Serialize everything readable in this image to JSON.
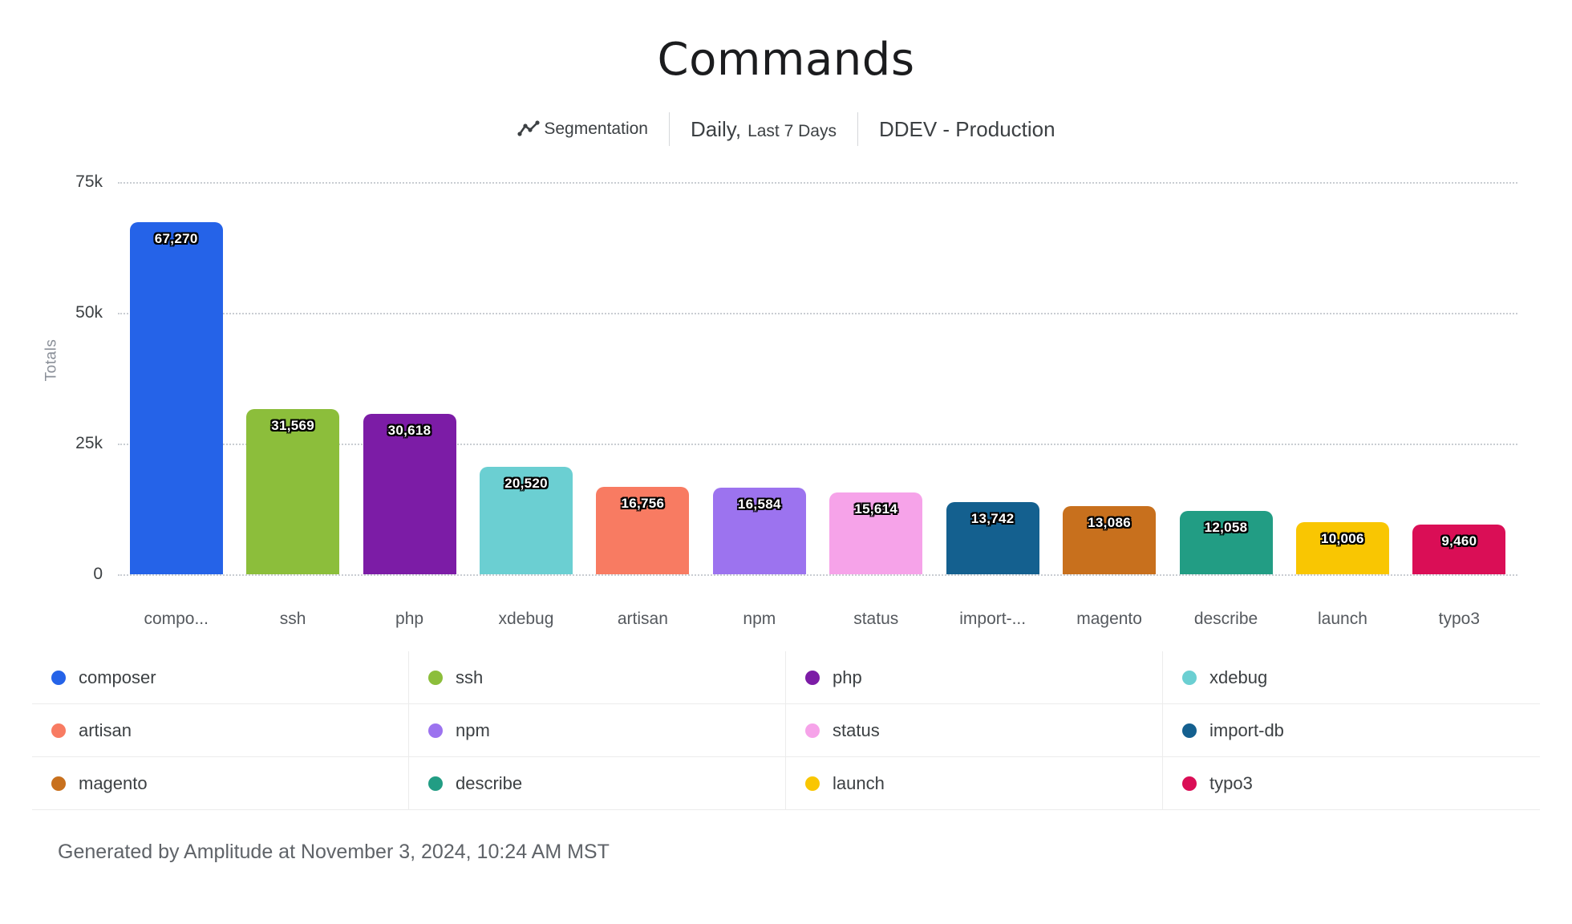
{
  "header": {
    "title": "Commands",
    "meta": {
      "chart_type_label": "Segmentation",
      "granularity": "Daily,",
      "date_range": "Last 7 Days",
      "project": "DDEV - Production"
    }
  },
  "chart_data": {
    "type": "bar",
    "title": "Commands",
    "xlabel": "",
    "ylabel": "Totals",
    "ylim": [
      0,
      75000
    ],
    "grid": "horizontal-dotted",
    "legend_position": "bottom",
    "yticks": [
      {
        "value": 75000,
        "label": "75k"
      },
      {
        "value": 50000,
        "label": "50k"
      },
      {
        "value": 25000,
        "label": "25k"
      },
      {
        "value": 0,
        "label": "0"
      }
    ],
    "categories": [
      "compo...",
      "ssh",
      "php",
      "xdebug",
      "artisan",
      "npm",
      "status",
      "import-...",
      "magento",
      "describe",
      "launch",
      "typo3"
    ],
    "bars": [
      {
        "name": "composer",
        "axis_label": "compo...",
        "value": 67270,
        "value_label": "67,270",
        "color": "#2563e8"
      },
      {
        "name": "ssh",
        "axis_label": "ssh",
        "value": 31569,
        "value_label": "31,569",
        "color": "#8cbe3b"
      },
      {
        "name": "php",
        "axis_label": "php",
        "value": 30618,
        "value_label": "30,618",
        "color": "#7c1ca6"
      },
      {
        "name": "xdebug",
        "axis_label": "xdebug",
        "value": 20520,
        "value_label": "20,520",
        "color": "#6bcfd2"
      },
      {
        "name": "artisan",
        "axis_label": "artisan",
        "value": 16756,
        "value_label": "16,756",
        "color": "#f87b62"
      },
      {
        "name": "npm",
        "axis_label": "npm",
        "value": 16584,
        "value_label": "16,584",
        "color": "#9c73ef"
      },
      {
        "name": "status",
        "axis_label": "status",
        "value": 15614,
        "value_label": "15,614",
        "color": "#f6a3e9"
      },
      {
        "name": "import-db",
        "axis_label": "import-...",
        "value": 13742,
        "value_label": "13,742",
        "color": "#14608f"
      },
      {
        "name": "magento",
        "axis_label": "magento",
        "value": 13086,
        "value_label": "13,086",
        "color": "#c8701d"
      },
      {
        "name": "describe",
        "axis_label": "describe",
        "value": 12058,
        "value_label": "12,058",
        "color": "#229d84"
      },
      {
        "name": "launch",
        "axis_label": "launch",
        "value": 10006,
        "value_label": "10,006",
        "color": "#f9c602"
      },
      {
        "name": "typo3",
        "axis_label": "typo3",
        "value": 9460,
        "value_label": "9,460",
        "color": "#da0e56"
      }
    ],
    "legend": [
      {
        "label": "composer",
        "color": "#2563e8"
      },
      {
        "label": "ssh",
        "color": "#8cbe3b"
      },
      {
        "label": "php",
        "color": "#7c1ca6"
      },
      {
        "label": "xdebug",
        "color": "#6bcfd2"
      },
      {
        "label": "artisan",
        "color": "#f87b62"
      },
      {
        "label": "npm",
        "color": "#9c73ef"
      },
      {
        "label": "status",
        "color": "#f6a3e9"
      },
      {
        "label": "import-db",
        "color": "#14608f"
      },
      {
        "label": "magento",
        "color": "#c8701d"
      },
      {
        "label": "describe",
        "color": "#229d84"
      },
      {
        "label": "launch",
        "color": "#f9c602"
      },
      {
        "label": "typo3",
        "color": "#da0e56"
      }
    ]
  },
  "footer": {
    "text": "Generated by Amplitude at November 3, 2024, 10:24 AM MST"
  }
}
